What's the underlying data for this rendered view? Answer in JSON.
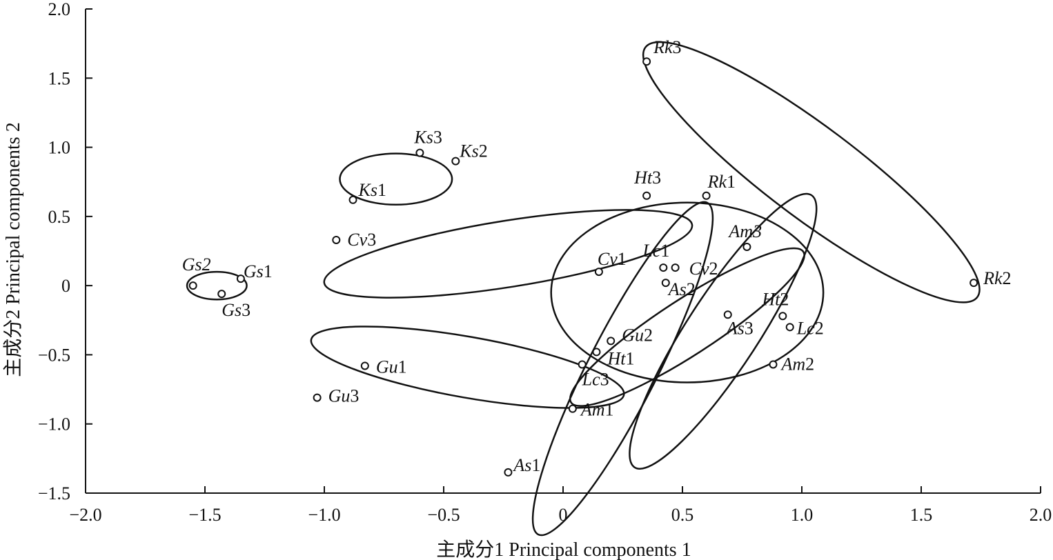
{
  "chart_data": {
    "type": "scatter",
    "title": "",
    "xlabel": "主成分1 Principal components 1",
    "ylabel": "主成分2 Principal components 2",
    "xlim": [
      -2.0,
      2.0
    ],
    "ylim": [
      -1.5,
      2.0
    ],
    "x_ticks": [
      {
        "v": -2.0,
        "t": "−2.0"
      },
      {
        "v": -1.5,
        "t": "−1.5"
      },
      {
        "v": -1.0,
        "t": "−1.0"
      },
      {
        "v": -0.5,
        "t": "−0.5"
      },
      {
        "v": 0,
        "t": "0"
      },
      {
        "v": 0.5,
        "t": "0.5"
      },
      {
        "v": 1.0,
        "t": "1.0"
      },
      {
        "v": 1.5,
        "t": "1.5"
      },
      {
        "v": 2.0,
        "t": "2.0"
      }
    ],
    "y_ticks": [
      {
        "v": -1.5,
        "t": "−1.5"
      },
      {
        "v": -1.0,
        "t": "−1.0"
      },
      {
        "v": -0.5,
        "t": "−0.5"
      },
      {
        "v": 0,
        "t": "0"
      },
      {
        "v": 0.5,
        "t": "0.5"
      },
      {
        "v": 1.0,
        "t": "1.0"
      },
      {
        "v": 1.5,
        "t": "1.5"
      },
      {
        "v": 2.0,
        "t": "2.0"
      }
    ],
    "grid": false,
    "points": [
      {
        "id": "Gs1",
        "pre": "Gs",
        "num": "1",
        "x": -1.35,
        "y": 0.05
      },
      {
        "id": "Gs2",
        "pre": "Gs2",
        "num": "",
        "x": -1.55,
        "y": 0.0
      },
      {
        "id": "Gs3",
        "pre": "Gs",
        "num": "3",
        "x": -1.43,
        "y": -0.06
      },
      {
        "id": "Ks1",
        "pre": "Ks",
        "num": "1",
        "x": -0.88,
        "y": 0.62
      },
      {
        "id": "Ks2",
        "pre": "Ks",
        "num": "2",
        "x": -0.45,
        "y": 0.9
      },
      {
        "id": "Ks3",
        "pre": "Ks",
        "num": "3",
        "x": -0.6,
        "y": 0.96
      },
      {
        "id": "Cv1",
        "pre": "Cv",
        "num": "1",
        "x": 0.15,
        "y": 0.1
      },
      {
        "id": "Cv2",
        "pre": "Cv",
        "num": "2",
        "x": 0.47,
        "y": 0.13
      },
      {
        "id": "Cv3",
        "pre": "Cv",
        "num": "3",
        "x": -0.95,
        "y": 0.33
      },
      {
        "id": "Gu1",
        "pre": "Gu",
        "num": "1",
        "x": -0.83,
        "y": -0.58
      },
      {
        "id": "Gu2",
        "pre": "Gu",
        "num": "2",
        "x": 0.2,
        "y": -0.4
      },
      {
        "id": "Gu3",
        "pre": "Gu",
        "num": "3",
        "x": -1.03,
        "y": -0.81
      },
      {
        "id": "Ht1",
        "pre": "Ht",
        "num": "1",
        "x": 0.14,
        "y": -0.48
      },
      {
        "id": "Ht2",
        "pre": "Ht",
        "num": "2",
        "x": 0.92,
        "y": -0.22
      },
      {
        "id": "Ht3",
        "pre": "Ht",
        "num": "3",
        "x": 0.35,
        "y": 0.65
      },
      {
        "id": "Lc1",
        "pre": "Lc",
        "num": "1",
        "x": 0.42,
        "y": 0.13
      },
      {
        "id": "Lc2",
        "pre": "Lc",
        "num": "2",
        "x": 0.95,
        "y": -0.3
      },
      {
        "id": "Lc3",
        "pre": "Lc",
        "num": "3",
        "x": 0.08,
        "y": -0.57
      },
      {
        "id": "As1",
        "pre": "As",
        "num": "1",
        "x": -0.23,
        "y": -1.35
      },
      {
        "id": "As2",
        "pre": "As",
        "num": "2",
        "x": 0.43,
        "y": 0.02
      },
      {
        "id": "As3",
        "pre": "As",
        "num": "3",
        "x": 0.69,
        "y": -0.21
      },
      {
        "id": "Am1",
        "pre": "Am",
        "num": "1",
        "x": 0.04,
        "y": -0.89
      },
      {
        "id": "Am2",
        "pre": "Am",
        "num": "2",
        "x": 0.88,
        "y": -0.57
      },
      {
        "id": "Am3",
        "pre": "Am3",
        "num": "",
        "x": 0.77,
        "y": 0.28
      },
      {
        "id": "Rk1",
        "pre": "Rk",
        "num": "1",
        "x": 0.6,
        "y": 0.65
      },
      {
        "id": "Rk2",
        "pre": "Rk",
        "num": "2",
        "x": 1.72,
        "y": 0.02
      },
      {
        "id": "Rk3",
        "pre": "Rk",
        "num": "3",
        "x": 0.35,
        "y": 1.62
      }
    ],
    "groups": [
      {
        "name": "Gs",
        "cx": -1.45,
        "cy": 0.0,
        "rx": 0.125,
        "ry": 0.1,
        "angle": 0
      },
      {
        "name": "Ks",
        "cx": -0.7,
        "cy": 0.77,
        "rx": 0.235,
        "ry": 0.185,
        "angle": 0
      },
      {
        "name": "Cv",
        "cx": -0.23,
        "cy": 0.23,
        "rx": 0.78,
        "ry": 0.24,
        "angle": -9
      },
      {
        "name": "Gu",
        "cx": -0.4,
        "cy": -0.59,
        "rx": 0.665,
        "ry": 0.22,
        "angle": 10
      },
      {
        "name": "Ht",
        "cx": 0.52,
        "cy": -0.05,
        "rx": 0.57,
        "ry": 0.65,
        "angle": 0
      },
      {
        "name": "Lc",
        "cx": 0.52,
        "cy": -0.3,
        "rx": 0.58,
        "ry": 0.2,
        "angle": -33
      },
      {
        "name": "As",
        "cx": 0.25,
        "cy": -0.6,
        "rx": 0.78,
        "ry": 0.25,
        "angle": -63
      },
      {
        "name": "Am",
        "cx": 0.67,
        "cy": -0.33,
        "rx": 0.68,
        "ry": 0.26,
        "angle": -57
      },
      {
        "name": "Rk",
        "cx": 1.04,
        "cy": 0.82,
        "rx": 0.87,
        "ry": 0.33,
        "angle": 37
      }
    ]
  }
}
